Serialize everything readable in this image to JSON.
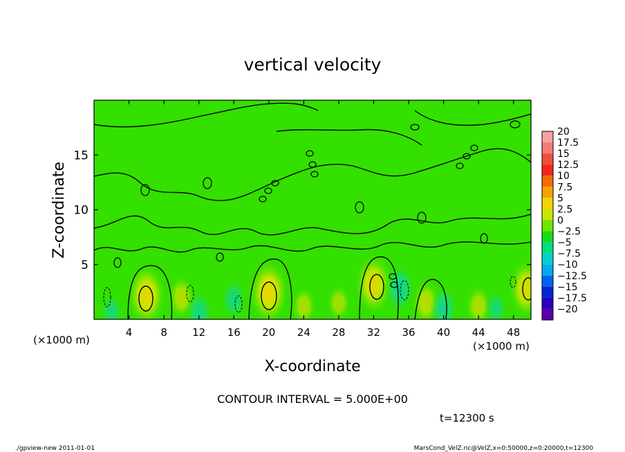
{
  "chart_data": {
    "type": "heatmap",
    "title": "vertical velocity",
    "xlabel": "X-coordinate",
    "ylabel": "Z-coordinate",
    "x_unit": "(×1000 m)",
    "x_unit_right": "(×1000 m)",
    "y_unit": "(×1000 m)",
    "xlim": [
      0,
      50
    ],
    "ylim": [
      0,
      20
    ],
    "x_ticks": [
      4,
      8,
      12,
      16,
      20,
      24,
      28,
      32,
      36,
      40,
      44,
      48
    ],
    "y_ticks": [
      5,
      10,
      15
    ],
    "colorbar": {
      "levels": [
        20,
        17.5,
        15,
        12.5,
        10,
        7.5,
        5,
        2.5,
        0,
        -2.5,
        -5,
        -7.5,
        -10,
        -12.5,
        -15,
        -17.5,
        -20
      ],
      "colors": [
        "#f4a3a3",
        "#f57b7b",
        "#f24e3c",
        "#f0281e",
        "#f26a00",
        "#f5a200",
        "#f0d400",
        "#c8e600",
        "#6ee600",
        "#19dc19",
        "#00dc82",
        "#00d2c8",
        "#00aaf0",
        "#0064f0",
        "#0028d2",
        "#2800be",
        "#5a00aa"
      ]
    },
    "field_series": [
      {
        "x": 2,
        "z": 0.7,
        "w": -1.5
      },
      {
        "x": 6,
        "z": 2.2,
        "w": 7.5
      },
      {
        "x": 10,
        "z": 2.0,
        "w": 3.0
      },
      {
        "x": 12,
        "z": 0.6,
        "w": -3.0
      },
      {
        "x": 16,
        "z": 1.8,
        "w": -2.5
      },
      {
        "x": 20,
        "z": 2.5,
        "w": 8.0
      },
      {
        "x": 24,
        "z": 1.2,
        "w": 2.0
      },
      {
        "x": 28,
        "z": 1.5,
        "w": 1.5
      },
      {
        "x": 32,
        "z": 3.2,
        "w": 7.0
      },
      {
        "x": 35,
        "z": 2.8,
        "w": -4.5
      },
      {
        "x": 38,
        "z": 1.5,
        "w": 3.5
      },
      {
        "x": 40,
        "z": 1.0,
        "w": -3.5
      },
      {
        "x": 44,
        "z": 1.2,
        "w": 2.5
      },
      {
        "x": 46,
        "z": 1.0,
        "w": -1.5
      },
      {
        "x": 49.5,
        "z": 2.8,
        "w": 6.5
      }
    ],
    "contour_interval": "CONTOUR INTERVAL = 5.000E+00"
  },
  "time_label": "t=12300 s",
  "footer": {
    "left": "./gpview-new   2011-01-01",
    "right": "MarsCond_VelZ.nc@VelZ,x=0:50000,z=0:20000,t=12300"
  }
}
